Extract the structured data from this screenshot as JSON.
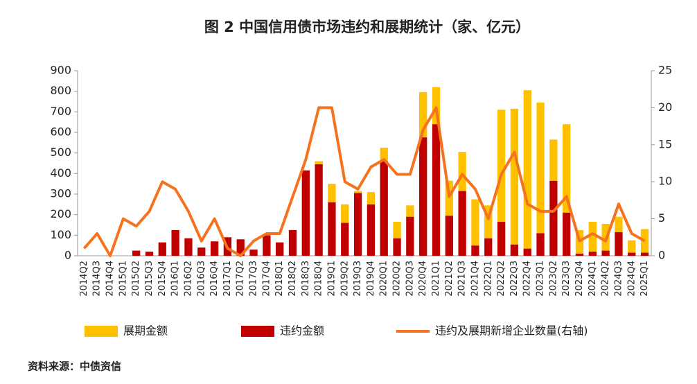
{
  "chart_data": {
    "type": "bar",
    "title": "图 2  中国信用债市场违约和展期统计（家、亿元）",
    "source": "资料来源：中债资信",
    "categories": [
      "2014Q2",
      "2014Q3",
      "2014Q4",
      "2015Q1",
      "2015Q2",
      "2015Q3",
      "2015Q4",
      "2016Q1",
      "2016Q2",
      "2016Q3",
      "2016Q4",
      "2017Q1",
      "2017Q2",
      "2017Q3",
      "2017Q4",
      "2018Q1",
      "2018Q2",
      "2018Q3",
      "2018Q4",
      "2019Q1",
      "2019Q2",
      "2019Q3",
      "2019Q4",
      "2020Q1",
      "2020Q2",
      "2020Q3",
      "2020Q4",
      "2021Q1",
      "2021Q2",
      "2021Q3",
      "2021Q4",
      "2022Q1",
      "2022Q2",
      "2022Q3",
      "2022Q4",
      "2023Q1",
      "2023Q2",
      "2023Q3",
      "2023Q4",
      "2024Q1",
      "2024Q2",
      "2024Q3",
      "2024Q4",
      "2025Q1"
    ],
    "series": [
      {
        "name": "展期金额",
        "type": "bar",
        "color": "#FFC000",
        "values": [
          0,
          0,
          0,
          0,
          0,
          0,
          0,
          0,
          0,
          0,
          0,
          0,
          0,
          0,
          0,
          0,
          0,
          0,
          15,
          90,
          90,
          10,
          60,
          65,
          80,
          55,
          220,
          180,
          170,
          190,
          225,
          160,
          545,
          660,
          770,
          635,
          200,
          430,
          115,
          145,
          130,
          75,
          60,
          115
        ]
      },
      {
        "name": "违约金额",
        "type": "bar",
        "color": "#C00000",
        "values": [
          0,
          0,
          0,
          0,
          25,
          20,
          65,
          125,
          85,
          40,
          70,
          90,
          80,
          30,
          100,
          65,
          125,
          415,
          445,
          260,
          160,
          305,
          250,
          460,
          85,
          190,
          576,
          640,
          195,
          315,
          50,
          85,
          165,
          55,
          35,
          110,
          365,
          210,
          10,
          20,
          25,
          115,
          15,
          15
        ]
      },
      {
        "name": "违约及展期新增企业数量(右轴)",
        "type": "line",
        "axis": "y2",
        "color": "#F5731F",
        "values": [
          1,
          3,
          0,
          5,
          4,
          6,
          10,
          9,
          6,
          2,
          5,
          1,
          0,
          2,
          3,
          3,
          8,
          13,
          20,
          20,
          10,
          9,
          12,
          13,
          11,
          11,
          17,
          20,
          8,
          11,
          9,
          5,
          11,
          14,
          7,
          6,
          6,
          8,
          2,
          3,
          2,
          7,
          3,
          2
        ]
      }
    ],
    "ylim": [
      0,
      900
    ],
    "yticks": [
      0,
      100,
      200,
      300,
      400,
      500,
      600,
      700,
      800,
      900
    ],
    "y2lim": [
      0,
      25
    ],
    "y2ticks": [
      0,
      5,
      10,
      15,
      20,
      25
    ],
    "grid": false
  }
}
